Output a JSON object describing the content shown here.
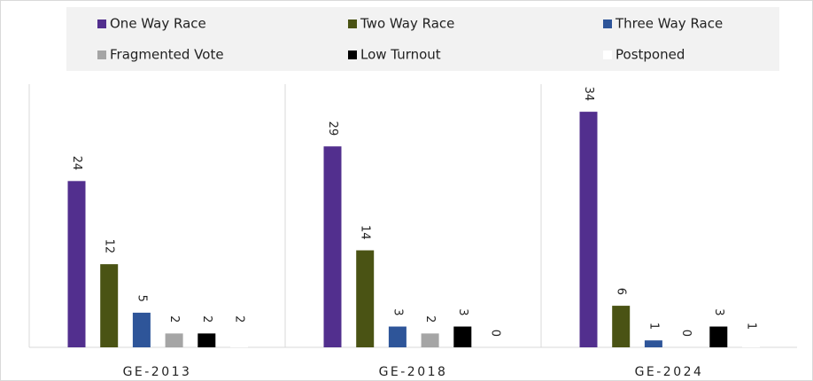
{
  "chart_data": {
    "type": "bar",
    "categories": [
      "GE-2013",
      "GE-2018",
      "GE-2024"
    ],
    "series": [
      {
        "name": "One Way Race",
        "color": "#522f8e",
        "values": [
          24,
          29,
          34
        ]
      },
      {
        "name": "Two Way Race",
        "color": "#4a5314",
        "values": [
          12,
          14,
          6
        ]
      },
      {
        "name": "Three Way Race",
        "color": "#2e5599",
        "values": [
          5,
          3,
          1
        ]
      },
      {
        "name": "Fragmented Vote",
        "color": "#a5a5a5",
        "values": [
          2,
          2,
          0
        ]
      },
      {
        "name": "Low Turnout",
        "color": "#000000",
        "values": [
          2,
          3,
          3
        ]
      },
      {
        "name": "Postponed",
        "color": "#ffffff",
        "values": [
          2,
          0,
          1
        ]
      }
    ],
    "legend": "top"
  }
}
